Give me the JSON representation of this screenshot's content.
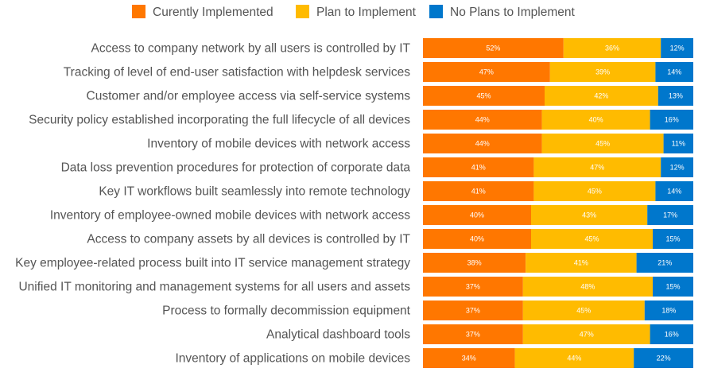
{
  "chart_data": {
    "type": "bar",
    "orientation": "horizontal",
    "stacked": true,
    "legend_position": "top",
    "grid": false,
    "xlim": [
      0,
      100
    ],
    "categories": [
      "Access to company network by all users is controlled by IT",
      "Tracking of level of end-user satisfaction with helpdesk services",
      "Customer and/or employee access via self-service systems",
      "Security policy established incorporating the full lifecycle of all devices",
      "Inventory of mobile devices with network access",
      "Data loss prevention procedures for protection of corporate data",
      "Key IT workflows built seamlessly into remote technology",
      "Inventory of employee-owned mobile devices with network access",
      "Access to company assets by all devices is controlled by IT",
      "Key employee-related process built into IT service management strategy",
      "Unified IT monitoring and management systems for all users and assets",
      "Process to formally decommission equipment",
      "Analytical dashboard tools",
      "Inventory of applications on mobile devices"
    ],
    "series": [
      {
        "name": "Curently Implemented",
        "color": "#FF7700",
        "values": [
          52,
          47,
          45,
          44,
          44,
          41,
          41,
          40,
          40,
          38,
          37,
          37,
          37,
          34
        ]
      },
      {
        "name": "Plan to Implement",
        "color": "#FFBB00",
        "values": [
          36,
          39,
          42,
          40,
          45,
          47,
          45,
          43,
          45,
          41,
          48,
          45,
          47,
          44
        ]
      },
      {
        "name": "No Plans to Implement",
        "color": "#0077CC",
        "values": [
          12,
          14,
          13,
          16,
          11,
          12,
          14,
          17,
          15,
          21,
          15,
          18,
          16,
          22
        ]
      }
    ],
    "value_suffix": "%"
  }
}
